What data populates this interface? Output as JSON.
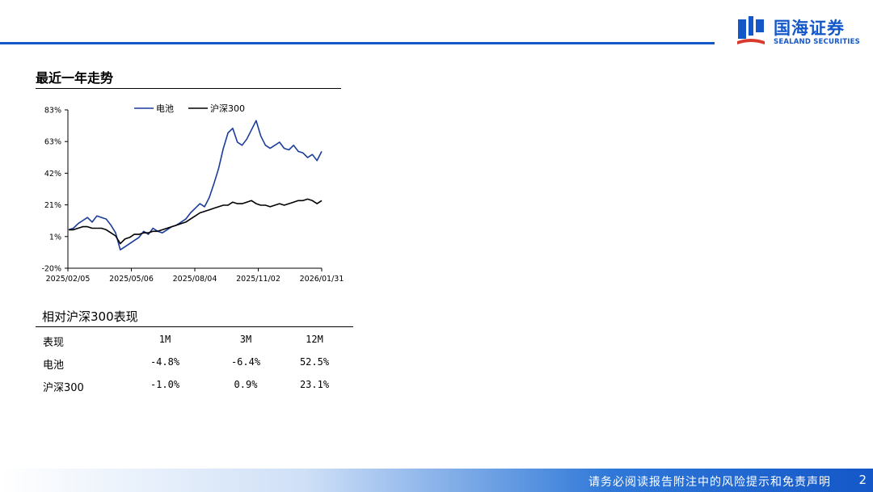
{
  "brand": {
    "name_cn": "国海证券",
    "name_en": "SEALAND SECURITIES",
    "color": "#1457c8"
  },
  "section_title": "最近一年走势",
  "chart_data": {
    "type": "line",
    "y_ticks": [
      "83%",
      "63%",
      "42%",
      "21%",
      "1%",
      "-20%"
    ],
    "x_ticks": [
      "2025/02/05",
      "2025/05/06",
      "2025/08/04",
      "2025/11/02",
      "2026/01/31"
    ],
    "ylim": [
      -20,
      83
    ],
    "legend_position": "top",
    "series": [
      {
        "name": "电池",
        "color": "#1a3c9a",
        "values": [
          5,
          6,
          9,
          11,
          13,
          10,
          14,
          13,
          12,
          8,
          3,
          -8,
          -6,
          -4,
          -2,
          0,
          4,
          2,
          6,
          4,
          3,
          5,
          7,
          8,
          10,
          12,
          16,
          19,
          22,
          20,
          26,
          35,
          45,
          58,
          68,
          71,
          62,
          60,
          64,
          70,
          76,
          66,
          60,
          58,
          60,
          62,
          58,
          57,
          60,
          56,
          55,
          52,
          54,
          50,
          56
        ]
      },
      {
        "name": "沪深300",
        "color": "#000000",
        "values": [
          5,
          5,
          6,
          7,
          7,
          6,
          6,
          6,
          5,
          3,
          1,
          -4,
          -1,
          0,
          2,
          2,
          3,
          3,
          4,
          4,
          5,
          6,
          7,
          8,
          9,
          10,
          12,
          14,
          16,
          17,
          18,
          19,
          20,
          21,
          21,
          23,
          22,
          22,
          23,
          24,
          22,
          21,
          21,
          20,
          21,
          22,
          21,
          22,
          23,
          24,
          24,
          25,
          24,
          22,
          24
        ]
      }
    ]
  },
  "performance": {
    "title": "相对沪深300表现",
    "headers": [
      "表现",
      "1M",
      "3M",
      "12M"
    ],
    "rows": [
      {
        "name": "电池",
        "m1": "-4.8%",
        "m3": "-6.4%",
        "m12": "52.5%"
      },
      {
        "name": "沪深300",
        "m1": "-1.0%",
        "m3": "0.9%",
        "m12": "23.1%"
      }
    ]
  },
  "footer": {
    "disclaimer": "请务必阅读报告附注中的风险提示和免责声明",
    "page_number": "2"
  }
}
